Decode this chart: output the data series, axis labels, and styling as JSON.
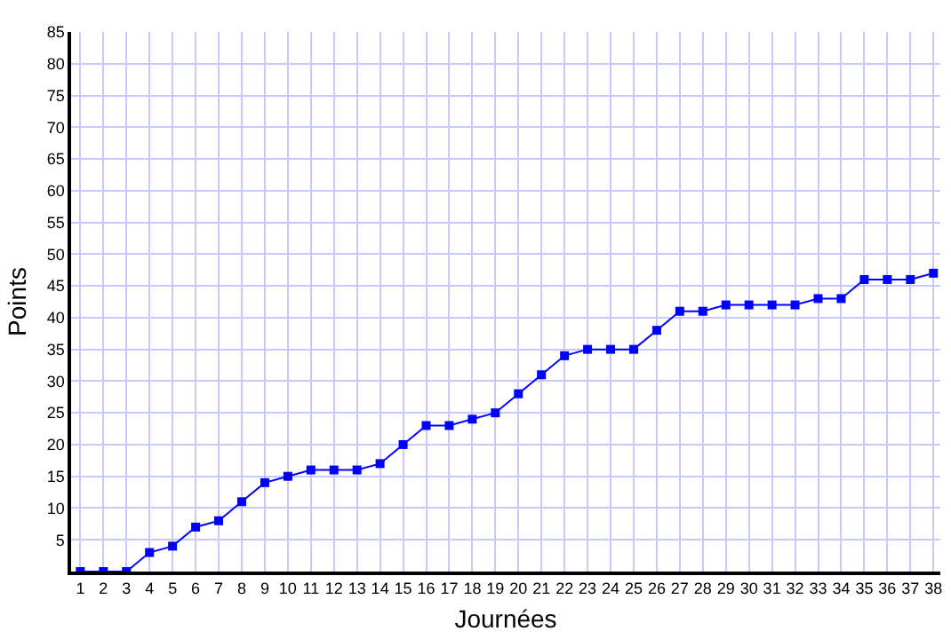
{
  "chart_data": {
    "type": "line",
    "xlabel": "Journées",
    "ylabel": "Points",
    "x": [
      1,
      2,
      3,
      4,
      5,
      6,
      7,
      8,
      9,
      10,
      11,
      12,
      13,
      14,
      15,
      16,
      17,
      18,
      19,
      20,
      21,
      22,
      23,
      24,
      25,
      26,
      27,
      28,
      29,
      30,
      31,
      32,
      33,
      34,
      35,
      36,
      37,
      38
    ],
    "series": [
      {
        "color": "#0000ff",
        "values": [
          0,
          0,
          0,
          3,
          4,
          7,
          8,
          11,
          14,
          15,
          16,
          16,
          16,
          17,
          20,
          23,
          23,
          24,
          25,
          28,
          31,
          34,
          35,
          35,
          35,
          38,
          41,
          41,
          42,
          42,
          42,
          42,
          43,
          43,
          46,
          46,
          46,
          47
        ]
      }
    ],
    "xlim": [
      0.6,
      38.3
    ],
    "xticks": [
      1,
      2,
      3,
      4,
      5,
      6,
      7,
      8,
      9,
      10,
      11,
      12,
      13,
      14,
      15,
      16,
      17,
      18,
      19,
      20,
      21,
      22,
      23,
      24,
      25,
      26,
      27,
      28,
      29,
      30,
      31,
      32,
      33,
      34,
      35,
      36,
      37,
      38
    ],
    "ylim": [
      0,
      85
    ],
    "yticks": [
      5,
      10,
      15,
      20,
      25,
      30,
      35,
      40,
      45,
      50,
      55,
      60,
      65,
      70,
      75,
      80,
      85
    ],
    "grid": true,
    "marker": "square",
    "line_style": "solid",
    "legend": false
  }
}
